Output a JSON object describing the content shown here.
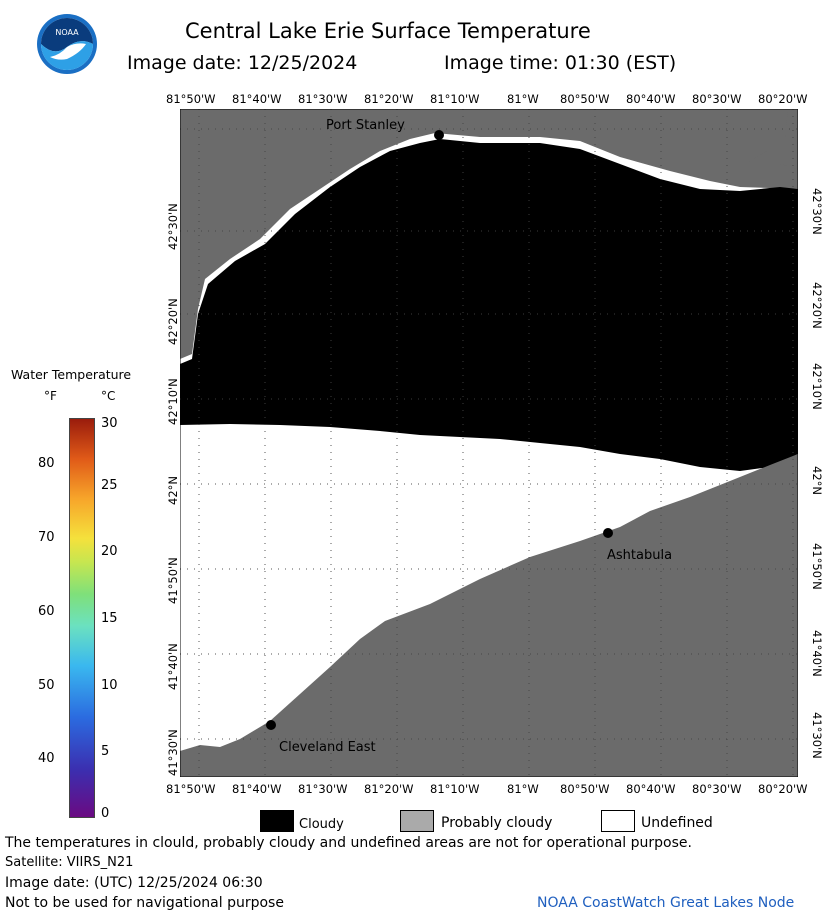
{
  "header": {
    "title": "Central Lake Erie Surface Temperature",
    "image_date_line": "Image date: 12/25/2024",
    "image_time_line": "Image time: 01:30 (EST)"
  },
  "map": {
    "lon_labels": [
      "81°50'W",
      "81°40'W",
      "81°30'W",
      "81°20'W",
      "81°10'W",
      "81°W",
      "80°50'W",
      "80°40'W",
      "80°30'W",
      "80°20'W"
    ],
    "lat_labels": [
      "42°30'N",
      "42°20'N",
      "42°10'N",
      "42°N",
      "41°50'N",
      "41°40'N",
      "41°30'N"
    ],
    "places": [
      "Port Stanley",
      "Ashtabula",
      "Cleveland East"
    ],
    "colors": {
      "cloudy": "#000000",
      "land": "#6b6b6b",
      "undefined": "#ffffff",
      "probably_cloudy": "#aaaaaa"
    }
  },
  "scale": {
    "title": "Water Temperature",
    "unit_f": "°F",
    "unit_c": "°C",
    "f_ticks": [
      "80",
      "70",
      "60",
      "50",
      "40"
    ],
    "c_ticks": [
      "30",
      "25",
      "20",
      "15",
      "10",
      "5",
      "0"
    ]
  },
  "legend": [
    {
      "label": "Cloudy",
      "color": "#000000"
    },
    {
      "label": "Probably cloudy",
      "color": "#aaaaaa"
    },
    {
      "label": "Undefined",
      "color": "#ffffff"
    }
  ],
  "footer": {
    "disclaimer": "The temperatures in clould, probably cloudy and undefined areas are not for operational purpose.",
    "satellite": "Satellite: VIIRS_N21",
    "utc_date": "Image date: (UTC) 12/25/2024  06:30",
    "navigation": "Not to be used for navigational purpose",
    "credit": "NOAA CoastWatch Great Lakes Node"
  }
}
